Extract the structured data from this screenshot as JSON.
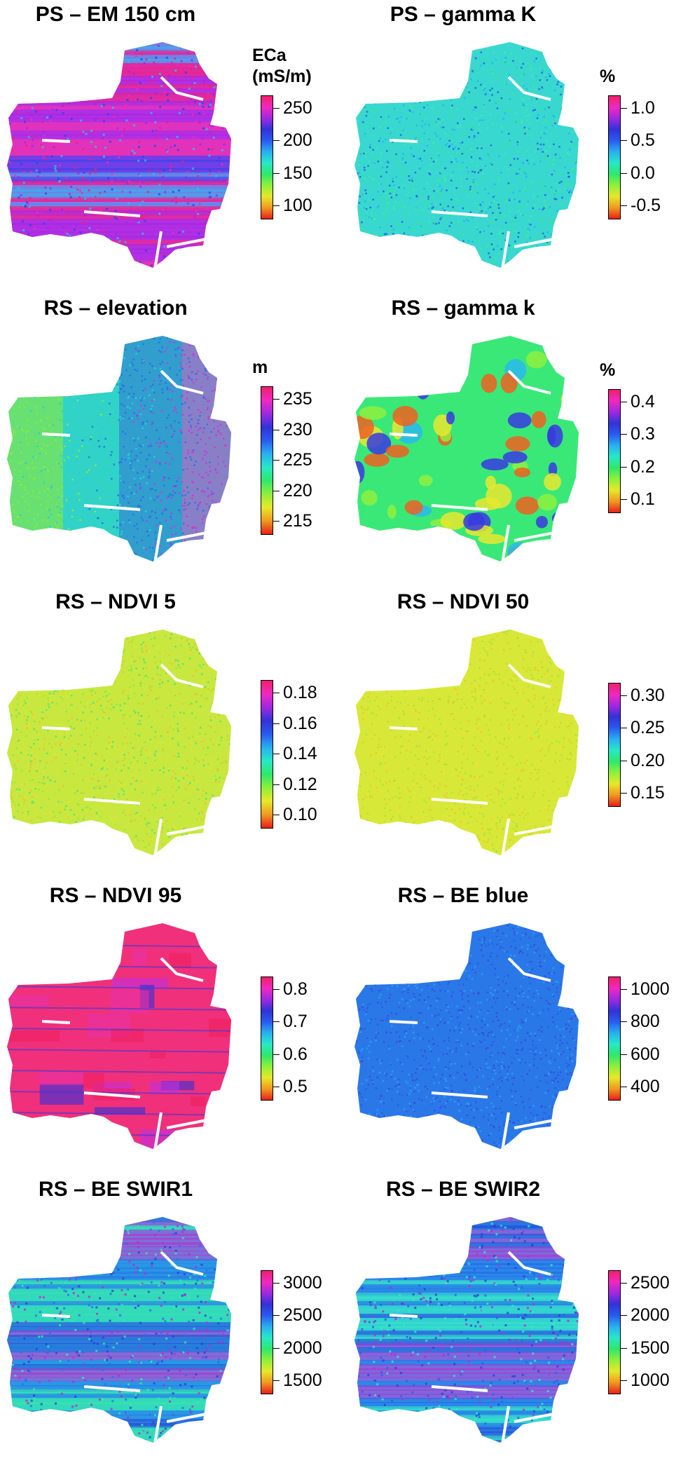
{
  "palette": [
    "#e8201a",
    "#f09a20",
    "#e6e82a",
    "#8ef03a",
    "#2ee86a",
    "#28e8c8",
    "#28b0f0",
    "#2a5af0",
    "#3232d8",
    "#a028e0",
    "#f028c0",
    "#f0206a"
  ],
  "panels": [
    {
      "title": "PS – EM 150 cm",
      "unit": "ECa\n(mS/m)",
      "ticks": [
        "250",
        "200",
        "150",
        "100"
      ],
      "base_color": "#c838e8",
      "texture": "banded",
      "mix": [
        "#f030a0",
        "#2a46e8",
        "#28c0e8",
        "#f02070",
        "#a028e0"
      ]
    },
    {
      "title": "PS – gamma K",
      "unit": "%",
      "ticks": [
        "1.0",
        "0.5",
        "0.0",
        "-0.5"
      ],
      "base_color": "#38d8d0",
      "texture": "grainy",
      "mix": [
        "#3ae878",
        "#2ab0f0",
        "#48e8a8",
        "#2a5ae8"
      ]
    },
    {
      "title": "RS – elevation",
      "unit": "m",
      "ticks": [
        "235",
        "230",
        "225",
        "220",
        "215"
      ],
      "base_color": "#3ad8b0",
      "texture": "gradient",
      "mix": [
        "#8ee840",
        "#28d0d8",
        "#2a70e8",
        "#c838d8"
      ]
    },
    {
      "title": "RS – gamma k",
      "unit": "%",
      "ticks": [
        "0.4",
        "0.3",
        "0.2",
        "0.1"
      ],
      "base_color": "#3ae878",
      "texture": "blobs",
      "mix": [
        "#e8e830",
        "#f06020",
        "#2ab8f0",
        "#3a3ae0",
        "#8ef040"
      ]
    },
    {
      "title": "RS – NDVI 5",
      "unit": "",
      "ticks": [
        "0.18",
        "0.16",
        "0.14",
        "0.12",
        "0.10"
      ],
      "base_color": "#c8e840",
      "texture": "grainy",
      "mix": [
        "#e8e030",
        "#8ee840",
        "#f0c030",
        "#48e878"
      ]
    },
    {
      "title": "RS – NDVI 50",
      "unit": "",
      "ticks": [
        "0.30",
        "0.25",
        "0.20",
        "0.15"
      ],
      "base_color": "#d8e838",
      "texture": "grainy",
      "mix": [
        "#e8c830",
        "#a0e840",
        "#f0e030"
      ]
    },
    {
      "title": "RS – NDVI 95",
      "unit": "",
      "ticks": [
        "0.8",
        "0.7",
        "0.6",
        "0.5"
      ],
      "base_color": "#f0307a",
      "texture": "fields",
      "mix": [
        "#e830a8",
        "#c030e0",
        "#f02060",
        "#3030d8"
      ]
    },
    {
      "title": "RS – BE blue",
      "unit": "",
      "ticks": [
        "1000",
        "800",
        "600",
        "400"
      ],
      "base_color": "#2a78e8",
      "texture": "grainy",
      "mix": [
        "#2a5ae0",
        "#2aa0f0",
        "#3a4ad8"
      ]
    },
    {
      "title": "RS – BE SWIR1",
      "unit": "",
      "ticks": [
        "3000",
        "2500",
        "2000",
        "1500"
      ],
      "base_color": "#28c8e0",
      "texture": "banded",
      "mix": [
        "#2a70e8",
        "#3ae8a0",
        "#2a40d8",
        "#c028d0"
      ]
    },
    {
      "title": "RS – BE SWIR2",
      "unit": "",
      "ticks": [
        "2500",
        "2000",
        "1500",
        "1000"
      ],
      "base_color": "#28b8e8",
      "texture": "banded",
      "mix": [
        "#2a60e8",
        "#3ae8c0",
        "#2a40d8",
        "#c028d0"
      ]
    }
  ]
}
